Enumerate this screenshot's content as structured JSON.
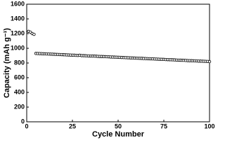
{
  "chart_data": {
    "type": "scatter",
    "xlabel": "Cycle Number",
    "ylabel": "Capacity (mAh g⁻¹)",
    "x": [
      1,
      2,
      3,
      4,
      5,
      6,
      7,
      8,
      9,
      10,
      11,
      12,
      13,
      14,
      15,
      16,
      17,
      18,
      19,
      20,
      21,
      22,
      23,
      24,
      25,
      26,
      27,
      28,
      29,
      30,
      31,
      32,
      33,
      34,
      35,
      36,
      37,
      38,
      39,
      40,
      41,
      42,
      43,
      44,
      45,
      46,
      47,
      48,
      49,
      50,
      51,
      52,
      53,
      54,
      55,
      56,
      57,
      58,
      59,
      60,
      61,
      62,
      63,
      64,
      65,
      66,
      67,
      68,
      69,
      70,
      71,
      72,
      73,
      74,
      75,
      76,
      77,
      78,
      79,
      80,
      81,
      82,
      83,
      84,
      85,
      86,
      87,
      88,
      89,
      90,
      91,
      92,
      93,
      94,
      95,
      96,
      97,
      98,
      99,
      100
    ],
    "values": [
      1230,
      1220,
      1200,
      1190,
      930,
      929,
      928,
      927,
      925,
      924,
      923,
      922,
      921,
      920,
      918,
      917,
      916,
      915,
      914,
      913,
      911,
      910,
      909,
      908,
      907,
      906,
      904,
      903,
      905,
      901,
      900,
      899,
      897,
      896,
      895,
      894,
      893,
      892,
      890,
      889,
      888,
      887,
      886,
      885,
      884,
      882,
      881,
      880,
      879,
      878,
      877,
      875,
      874,
      873,
      872,
      871,
      870,
      868,
      867,
      866,
      865,
      864,
      863,
      861,
      860,
      859,
      858,
      857,
      856,
      854,
      853,
      852,
      851,
      850,
      849,
      847,
      846,
      845,
      844,
      843,
      842,
      840,
      839,
      838,
      837,
      836,
      835,
      833,
      832,
      831,
      830,
      829,
      828,
      826,
      825,
      824,
      823,
      822,
      821,
      819
    ],
    "color": "#000000",
    "xlim": [
      0,
      100
    ],
    "xticks": [
      0,
      25,
      50,
      75,
      100
    ],
    "ylim": [
      0,
      1600
    ],
    "yticks": [
      0,
      200,
      400,
      600,
      800,
      1000,
      1200,
      1400,
      1600
    ]
  }
}
